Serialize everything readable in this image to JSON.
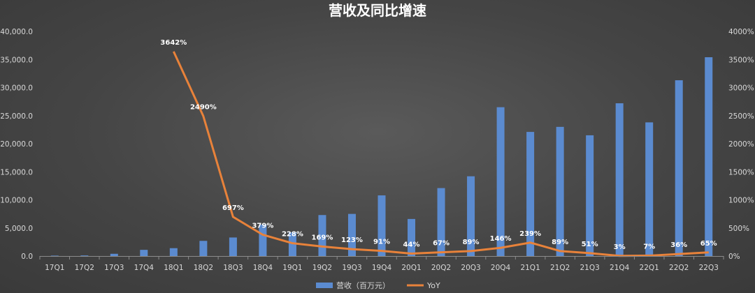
{
  "chart_data": {
    "type": "bar+line",
    "title": "营收及同比增速",
    "categories": [
      "17Q1",
      "17Q2",
      "17Q3",
      "17Q4",
      "18Q1",
      "18Q2",
      "18Q3",
      "18Q4",
      "19Q1",
      "19Q2",
      "19Q3",
      "19Q4",
      "20Q1",
      "20Q2",
      "20Q3",
      "20Q4",
      "21Q1",
      "21Q2",
      "21Q3",
      "21Q4",
      "22Q1",
      "22Q2",
      "22Q3"
    ],
    "series": [
      {
        "name": "营收（百万元）",
        "type": "bar",
        "axis": "left",
        "color": "#5b8bd0",
        "values": [
          70,
          100,
          400,
          1100,
          1400,
          2700,
          3300,
          5600,
          4200,
          7300,
          7500,
          10800,
          6600,
          12100,
          14200,
          26500,
          22100,
          23000,
          21500,
          27200,
          23800,
          31300,
          35400
        ]
      },
      {
        "name": "YoY",
        "type": "line",
        "axis": "right",
        "color": "#e8823a",
        "values": [
          null,
          null,
          null,
          null,
          3642,
          2490,
          697,
          379,
          228,
          169,
          123,
          91,
          44,
          67,
          89,
          146,
          239,
          89,
          51,
          3,
          7,
          36,
          65
        ],
        "labels": [
          null,
          null,
          null,
          null,
          "3642%",
          "2490%",
          "697%",
          "379%",
          "228%",
          "169%",
          "123%",
          "91%",
          "44%",
          "67%",
          "89%",
          "146%",
          "239%",
          "89%",
          "51%",
          "3%",
          "7%",
          "36%",
          "65%"
        ]
      }
    ],
    "y_left": {
      "ylim": [
        0,
        40000
      ],
      "ticks": [
        "0.0",
        "5,000.0",
        "10,000.0",
        "15,000.0",
        "20,000.0",
        "25,000.0",
        "30,000.0",
        "35,000.0",
        "40,000.0"
      ]
    },
    "y_right": {
      "ylim": [
        0,
        4000
      ],
      "ticks": [
        "0%",
        "500%",
        "1000%",
        "1500%",
        "2000%",
        "2500%",
        "3000%",
        "3500%",
        "4000%"
      ]
    },
    "grid": false,
    "legend_position": "bottom"
  }
}
